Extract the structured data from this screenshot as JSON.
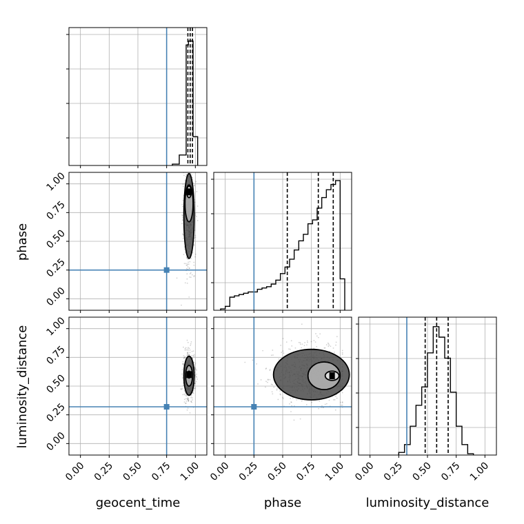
{
  "chart_data": {
    "type": "corner",
    "parameters": [
      "geocent_time",
      "phase",
      "luminosity_distance"
    ],
    "tick_labels": [
      "0.00",
      "0.25",
      "0.50",
      "0.75",
      "1.00"
    ],
    "axis_range": [
      -0.1,
      1.1
    ],
    "grid": true,
    "truths": {
      "geocent_time": 0.75,
      "phase": 0.25,
      "luminosity_distance": 0.32
    },
    "colors": {
      "truth": "#4682b4",
      "hist": "#000000",
      "grid": "#b0b0b0"
    },
    "quantiles": {
      "geocent_time": [
        0.935,
        0.955,
        0.975
      ],
      "phase": [
        0.54,
        0.81,
        0.94
      ],
      "luminosity_distance": [
        0.48,
        0.58,
        0.68
      ]
    },
    "histograms": {
      "geocent_time": {
        "edges": [
          0.8,
          0.86,
          0.92,
          0.94,
          0.96,
          0.98,
          1.02
        ],
        "counts": [
          0.01,
          0.08,
          0.92,
          0.95,
          0.95,
          0.22
        ]
      },
      "phase": {
        "edges": [
          -0.04,
          0.0,
          0.04,
          0.08,
          0.12,
          0.16,
          0.2,
          0.24,
          0.28,
          0.32,
          0.36,
          0.4,
          0.44,
          0.48,
          0.52,
          0.56,
          0.6,
          0.64,
          0.68,
          0.72,
          0.76,
          0.8,
          0.84,
          0.88,
          0.92,
          0.96,
          1.0,
          1.04
        ],
        "counts": [
          0.01,
          0.03,
          0.1,
          0.11,
          0.12,
          0.13,
          0.14,
          0.14,
          0.16,
          0.17,
          0.18,
          0.2,
          0.23,
          0.28,
          0.33,
          0.39,
          0.46,
          0.53,
          0.58,
          0.66,
          0.69,
          0.78,
          0.86,
          0.92,
          0.96,
          0.99,
          0.24
        ]
      },
      "luminosity_distance": {
        "edges": [
          0.25,
          0.3,
          0.35,
          0.4,
          0.45,
          0.5,
          0.55,
          0.6,
          0.65,
          0.7,
          0.75,
          0.8,
          0.85,
          0.9
        ],
        "counts": [
          0.02,
          0.08,
          0.22,
          0.38,
          0.52,
          0.78,
          0.98,
          0.9,
          0.74,
          0.48,
          0.22,
          0.08,
          0.01
        ]
      }
    },
    "contours_2d": {
      "phase_vs_geocent_time": [
        {
          "cx": 0.945,
          "cy": 0.93,
          "rx": 0.02,
          "ry": 0.05
        },
        {
          "cx": 0.945,
          "cy": 0.83,
          "rx": 0.035,
          "ry": 0.16
        },
        {
          "cx": 0.945,
          "cy": 0.72,
          "rx": 0.045,
          "ry": 0.37
        }
      ],
      "luminosity_distance_vs_geocent_time": [
        {
          "cx": 0.945,
          "cy": 0.6,
          "rx": 0.01,
          "ry": 0.03
        },
        {
          "cx": 0.945,
          "cy": 0.59,
          "rx": 0.03,
          "ry": 0.09
        },
        {
          "cx": 0.945,
          "cy": 0.59,
          "rx": 0.045,
          "ry": 0.17
        }
      ],
      "luminosity_distance_vs_phase": [
        {
          "cx": 0.93,
          "cy": 0.59,
          "rx": 0.06,
          "ry": 0.04
        },
        {
          "cx": 0.86,
          "cy": 0.59,
          "rx": 0.14,
          "ry": 0.12
        },
        {
          "cx": 0.75,
          "cy": 0.6,
          "rx": 0.33,
          "ry": 0.22
        }
      ]
    }
  }
}
